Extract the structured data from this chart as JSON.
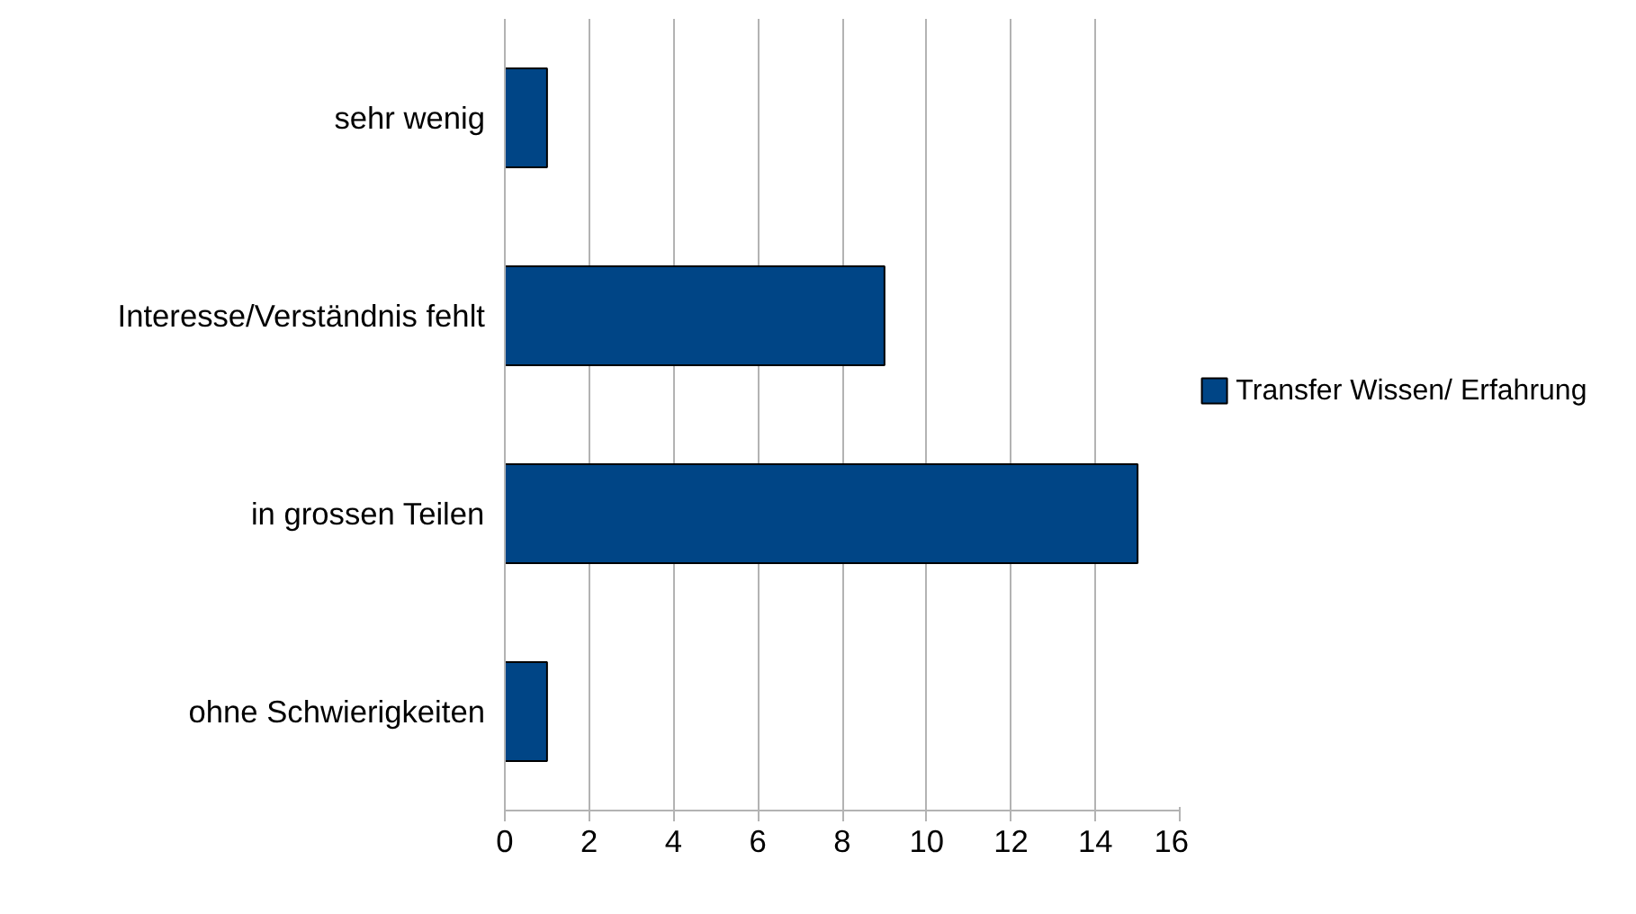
{
  "chart_data": {
    "type": "bar",
    "orientation": "horizontal",
    "categories": [
      "sehr wenig",
      "Interesse/Verständnis fehlt",
      "in grossen Teilen",
      "ohne Schwierigkeiten"
    ],
    "series": [
      {
        "name": "Transfer Wissen/ Erfahrung",
        "color": "#004586",
        "values": [
          1,
          9,
          15,
          1
        ]
      }
    ],
    "xlim": [
      0,
      16
    ],
    "xticks": [
      0,
      2,
      4,
      6,
      8,
      10,
      12,
      14,
      16
    ],
    "grid": "x",
    "legend": "right"
  }
}
